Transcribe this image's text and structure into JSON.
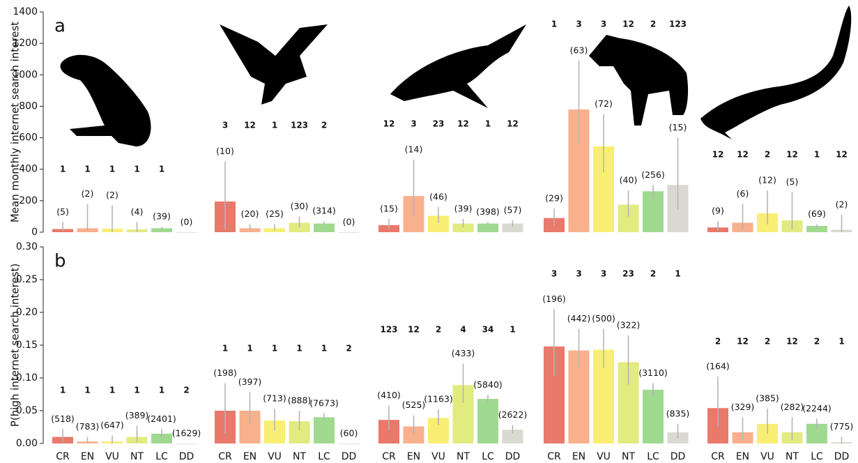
{
  "chart_data": [
    {
      "type": "bar",
      "panel": "a",
      "ylabel": "Mean monthly internet search interest",
      "ylim": [
        0,
        1400
      ],
      "yticks": [
        0,
        200,
        400,
        600,
        800,
        1000,
        1200,
        1400
      ],
      "categories": [
        "CR",
        "EN",
        "VU",
        "NT",
        "LC",
        "DD"
      ],
      "colors": [
        "#e8796b",
        "#f9b08c",
        "#f8ee74",
        "#e2eb80",
        "#a0d990",
        "#d9d9d1"
      ],
      "groups": [
        {
          "values": [
            20,
            25,
            22,
            18,
            25,
            0
          ],
          "lower": [
            5,
            5,
            3,
            3,
            15,
            0
          ],
          "upper": [
            65,
            180,
            170,
            65,
            35,
            0
          ],
          "n_labels": [
            "(5)",
            "(2)",
            "(2)",
            "(4)",
            "(39)",
            "(0)"
          ],
          "letters": [
            "1",
            "1",
            "1",
            "1",
            "1",
            null
          ]
        },
        {
          "values": [
            195,
            25,
            25,
            60,
            55,
            0
          ],
          "lower": [
            20,
            5,
            10,
            30,
            45,
            0
          ],
          "upper": [
            450,
            50,
            50,
            100,
            70,
            0
          ],
          "n_labels": [
            "(10)",
            "(20)",
            "(25)",
            "(30)",
            "(314)",
            "(0)"
          ],
          "letters": [
            "3",
            "12",
            "1",
            "123",
            "2",
            null
          ]
        },
        {
          "values": [
            45,
            230,
            105,
            55,
            55,
            55
          ],
          "lower": [
            20,
            100,
            60,
            30,
            45,
            35
          ],
          "upper": [
            85,
            460,
            160,
            85,
            65,
            75
          ],
          "n_labels": [
            "(15)",
            "(14)",
            "(46)",
            "(39)",
            "(398)",
            "(57)"
          ],
          "letters": [
            "12",
            "3",
            "23",
            "12",
            "1",
            "12"
          ]
        },
        {
          "values": [
            90,
            780,
            545,
            175,
            260,
            300
          ],
          "lower": [
            40,
            560,
            380,
            100,
            210,
            145
          ],
          "upper": [
            150,
            1090,
            750,
            265,
            300,
            600
          ],
          "n_labels": [
            "(29)",
            "(63)",
            "(72)",
            "(40)",
            "(256)",
            "(15)"
          ],
          "letters": [
            "1",
            "3",
            "3",
            "12",
            "2",
            "123"
          ]
        },
        {
          "values": [
            30,
            60,
            120,
            75,
            40,
            15
          ],
          "lower": [
            10,
            15,
            50,
            20,
            25,
            0
          ],
          "upper": [
            70,
            180,
            265,
            255,
            50,
            110
          ],
          "n_labels": [
            "(9)",
            "(6)",
            "(12)",
            "(5)",
            "(69)",
            "(2)"
          ],
          "letters": [
            "12",
            "12",
            "2",
            "12",
            "1",
            "12"
          ]
        }
      ]
    },
    {
      "type": "bar",
      "panel": "b",
      "ylabel": "P(high internet search interest)",
      "ylim": [
        0,
        0.3
      ],
      "yticks": [
        {
          "value": 0,
          "label": "0.00"
        },
        {
          "value": 0.05,
          "label": "0.05"
        },
        {
          "value": 0.1,
          "label": "0.10"
        },
        {
          "value": 0.15,
          "label": "0.15"
        },
        {
          "value": 0.2,
          "label": "0.20"
        },
        {
          "value": 0.25,
          "label": "0.25"
        },
        {
          "value": 0.3,
          "label": "0.30"
        }
      ],
      "categories": [
        "CR",
        "EN",
        "VU",
        "NT",
        "LC",
        "DD"
      ],
      "colors": [
        "#e8796b",
        "#f9b08c",
        "#f8ee74",
        "#e2eb80",
        "#a0d990",
        "#d9d9d1"
      ],
      "groups": [
        {
          "values": [
            0.01,
            0.003,
            0.003,
            0.01,
            0.015,
            0
          ],
          "lower": [
            0.002,
            0,
            0,
            0.002,
            0.01,
            0
          ],
          "upper": [
            0.022,
            0.01,
            0.012,
            0.027,
            0.022,
            0
          ],
          "n_labels": [
            "(518)",
            "(783)",
            "(647)",
            "(389)",
            "(2401)",
            "(1629)"
          ],
          "letters": [
            "1",
            "1",
            "1",
            "1",
            "1",
            "2"
          ]
        },
        {
          "values": [
            0.05,
            0.05,
            0.035,
            0.034,
            0.04,
            0
          ],
          "lower": [
            0.015,
            0.03,
            0.02,
            0.02,
            0.035,
            0
          ],
          "upper": [
            0.092,
            0.078,
            0.053,
            0.05,
            0.046,
            0
          ],
          "n_labels": [
            "(198)",
            "(397)",
            "(713)",
            "(888)",
            "(7673)",
            "(60)"
          ],
          "letters": [
            "1",
            "1",
            "1",
            "1",
            "1",
            "2"
          ]
        },
        {
          "values": [
            0.036,
            0.026,
            0.039,
            0.089,
            0.068,
            0.021
          ],
          "lower": [
            0.02,
            0.015,
            0.028,
            0.062,
            0.063,
            0.015
          ],
          "upper": [
            0.058,
            0.043,
            0.052,
            0.122,
            0.074,
            0.028
          ],
          "n_labels": [
            "(410)",
            "(525)",
            "(1163)",
            "(433)",
            "(5840)",
            "(2622)"
          ],
          "letters": [
            "123",
            "12",
            "2",
            "4",
            "34",
            "1"
          ]
        },
        {
          "values": [
            0.148,
            0.142,
            0.143,
            0.124,
            0.082,
            0.017
          ],
          "lower": [
            0.103,
            0.115,
            0.115,
            0.09,
            0.073,
            0.008
          ],
          "upper": [
            0.205,
            0.175,
            0.175,
            0.165,
            0.092,
            0.03
          ],
          "n_labels": [
            "(196)",
            "(442)",
            "(500)",
            "(322)",
            "(3110)",
            "(835)"
          ],
          "letters": [
            "3",
            "3",
            "3",
            "23",
            "2",
            "1"
          ]
        },
        {
          "values": [
            0.054,
            0.017,
            0.03,
            0.017,
            0.03,
            0.002
          ],
          "lower": [
            0.025,
            0.005,
            0.015,
            0.005,
            0.022,
            0
          ],
          "upper": [
            0.102,
            0.04,
            0.053,
            0.04,
            0.038,
            0.01
          ],
          "n_labels": [
            "(164)",
            "(329)",
            "(385)",
            "(282)",
            "(2244)",
            "(775)"
          ],
          "letters": [
            "2",
            "12",
            "2",
            "12",
            "2",
            "1"
          ]
        }
      ]
    }
  ]
}
